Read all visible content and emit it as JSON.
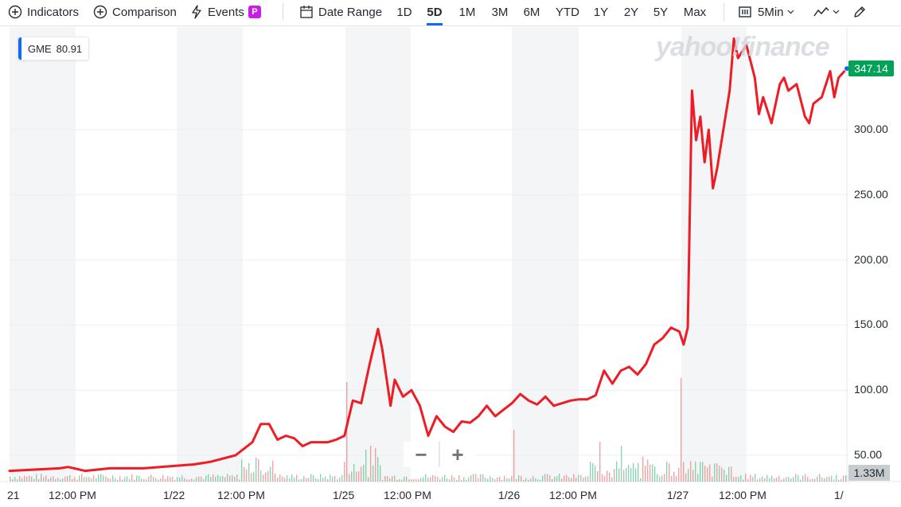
{
  "toolbar": {
    "indicators_label": "Indicators",
    "comparison_label": "Comparison",
    "events_label": "Events",
    "events_badge": "P",
    "date_range_label": "Date Range",
    "ranges": [
      "1D",
      "5D",
      "1M",
      "3M",
      "6M",
      "YTD",
      "1Y",
      "2Y",
      "5Y",
      "Max"
    ],
    "active_range": "5D",
    "interval_label": "5Min"
  },
  "legend": {
    "symbol": "GME",
    "value": "80.91"
  },
  "watermark": "yahoo!finance",
  "current_price": "347.14",
  "volume_tag": "1.33M",
  "colors": {
    "line": "#ee1c25",
    "accent": "#0f69ff",
    "price_tag": "#00a257",
    "vol_up": "#2db27a",
    "vol_down": "#e85b5b"
  },
  "chart_data": {
    "type": "line",
    "symbol": "GME",
    "y_ticks": [
      "50.00",
      "100.00",
      "150.00",
      "200.00",
      "250.00",
      "300.00"
    ],
    "ylim": [
      42,
      380
    ],
    "x_tick_labels": [
      "21",
      "12:00 PM",
      "1/22",
      "12:00 PM",
      "1/25",
      "12:00 PM",
      "1/26",
      "12:00 PM",
      "1/27",
      "12:00 PM",
      "1/"
    ],
    "x_index_range": [
      0,
      100
    ],
    "series": [
      {
        "values": [
          [
            0,
            38
          ],
          [
            3,
            39
          ],
          [
            6,
            40
          ],
          [
            7,
            41
          ],
          [
            9,
            38
          ],
          [
            12,
            40
          ],
          [
            16,
            40
          ],
          [
            20,
            42
          ],
          [
            22,
            43
          ],
          [
            24,
            45
          ],
          [
            27,
            50
          ],
          [
            29,
            60
          ],
          [
            30,
            74
          ],
          [
            31,
            74
          ],
          [
            32,
            62
          ],
          [
            33,
            65
          ],
          [
            34,
            63
          ],
          [
            35,
            57
          ],
          [
            36,
            60
          ],
          [
            37,
            60
          ],
          [
            38,
            60
          ],
          [
            39,
            62
          ],
          [
            40,
            65
          ],
          [
            41,
            92
          ],
          [
            42,
            90
          ],
          [
            43,
            120
          ],
          [
            44,
            147
          ],
          [
            44.5,
            132
          ],
          [
            45,
            110
          ],
          [
            45.5,
            88
          ],
          [
            46,
            108
          ],
          [
            47,
            95
          ],
          [
            48,
            100
          ],
          [
            49,
            88
          ],
          [
            50,
            65
          ],
          [
            51,
            80
          ],
          [
            52,
            72
          ],
          [
            53,
            68
          ],
          [
            54,
            76
          ],
          [
            55,
            75
          ],
          [
            56,
            80
          ],
          [
            57,
            88
          ],
          [
            58,
            80
          ],
          [
            59,
            85
          ],
          [
            60,
            90
          ],
          [
            61,
            97
          ],
          [
            62,
            92
          ],
          [
            63,
            89
          ],
          [
            64,
            95
          ],
          [
            65,
            88
          ],
          [
            66,
            90
          ],
          [
            67,
            92
          ],
          [
            68,
            93
          ],
          [
            69,
            93
          ],
          [
            70,
            96
          ],
          [
            71,
            115
          ],
          [
            72,
            105
          ],
          [
            73,
            115
          ],
          [
            74,
            118
          ],
          [
            75,
            112
          ],
          [
            76,
            120
          ],
          [
            77,
            135
          ],
          [
            78,
            140
          ],
          [
            79,
            148
          ],
          [
            80,
            145
          ],
          [
            80.5,
            135
          ],
          [
            81,
            148
          ],
          [
            81.5,
            330
          ],
          [
            82,
            292
          ],
          [
            82.5,
            310
          ],
          [
            83,
            275
          ],
          [
            83.5,
            300
          ],
          [
            84,
            255
          ],
          [
            84.5,
            270
          ],
          [
            85,
            290
          ],
          [
            86,
            330
          ],
          [
            86.5,
            370
          ],
          [
            87,
            355
          ],
          [
            88,
            365
          ],
          [
            89,
            340
          ],
          [
            89.5,
            312
          ],
          [
            90,
            325
          ],
          [
            91,
            305
          ],
          [
            92,
            335
          ],
          [
            92.5,
            340
          ],
          [
            93,
            330
          ],
          [
            94,
            335
          ],
          [
            95,
            310
          ],
          [
            95.5,
            305
          ],
          [
            96,
            320
          ],
          [
            97,
            325
          ],
          [
            98,
            345
          ],
          [
            98.5,
            325
          ],
          [
            99,
            340
          ],
          [
            100,
            347
          ]
        ]
      }
    ]
  }
}
